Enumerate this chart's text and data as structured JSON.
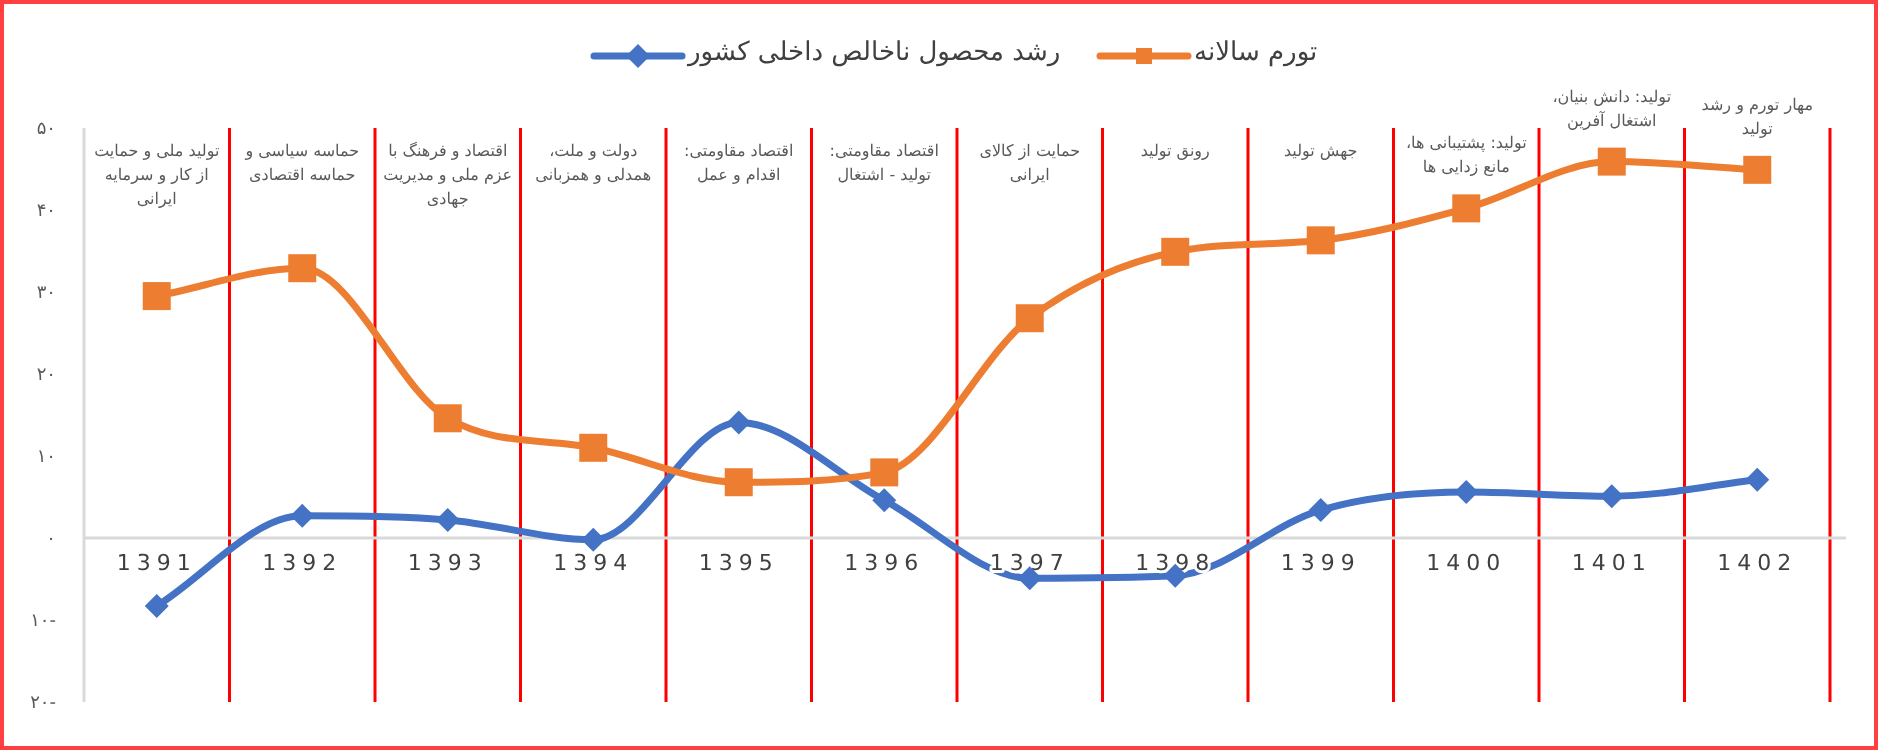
{
  "chart_data": {
    "type": "line",
    "categories": [
      "1391",
      "1392",
      "1393",
      "1394",
      "1395",
      "1396",
      "1397",
      "1398",
      "1399",
      "1400",
      "1401",
      "1402"
    ],
    "series": [
      {
        "name": "رشد محصول ناخالص داخلی کشور",
        "color": "#4472c4",
        "marker": "diamond",
        "values": [
          -8.3,
          2.7,
          2.2,
          -0.2,
          14.1,
          4.6,
          -4.9,
          -4.6,
          3.4,
          5.6,
          5.1,
          7.1
        ]
      },
      {
        "name": "تورم سالانه",
        "color": "#ed7d31",
        "marker": "square",
        "values": [
          29.5,
          32.9,
          14.6,
          11.0,
          6.8,
          8.0,
          26.8,
          34.9,
          36.3,
          40.2,
          45.9,
          44.9
        ]
      }
    ],
    "ylim": [
      -20,
      50
    ],
    "yticks": [
      {
        "value": 50,
        "label": "۵۰"
      },
      {
        "value": 40,
        "label": "۴۰"
      },
      {
        "value": 30,
        "label": "۳۰"
      },
      {
        "value": 20,
        "label": "۲۰"
      },
      {
        "value": 10,
        "label": "۱۰"
      },
      {
        "value": 0,
        "label": "۰"
      },
      {
        "value": -10,
        "label": "۱۰-"
      },
      {
        "value": -20,
        "label": "۲۰-"
      }
    ],
    "grid": "x",
    "legend": "top",
    "annotations": [
      "تولید ملی و حمایت از کار و سرمایه ایرانی",
      "حماسه سیاسی و حماسه اقتصادی",
      "اقتصاد و فرهنگ با عزم ملی و مدیریت جهادی",
      "دولت و ملت، همدلی و همزبانی",
      "اقتصاد مقاومتی: اقدام و عمل",
      "اقتصاد مقاومتی: تولید - اشتغال",
      "حمایت از کالای ایرانی",
      "رونق تولید",
      "جهش تولید",
      "تولید: پشتیبانی ها، مانع زدایی ها",
      "تولید: دانش بنیان، اشتغال آفرین",
      "مهار تورم و رشد تولید"
    ]
  }
}
